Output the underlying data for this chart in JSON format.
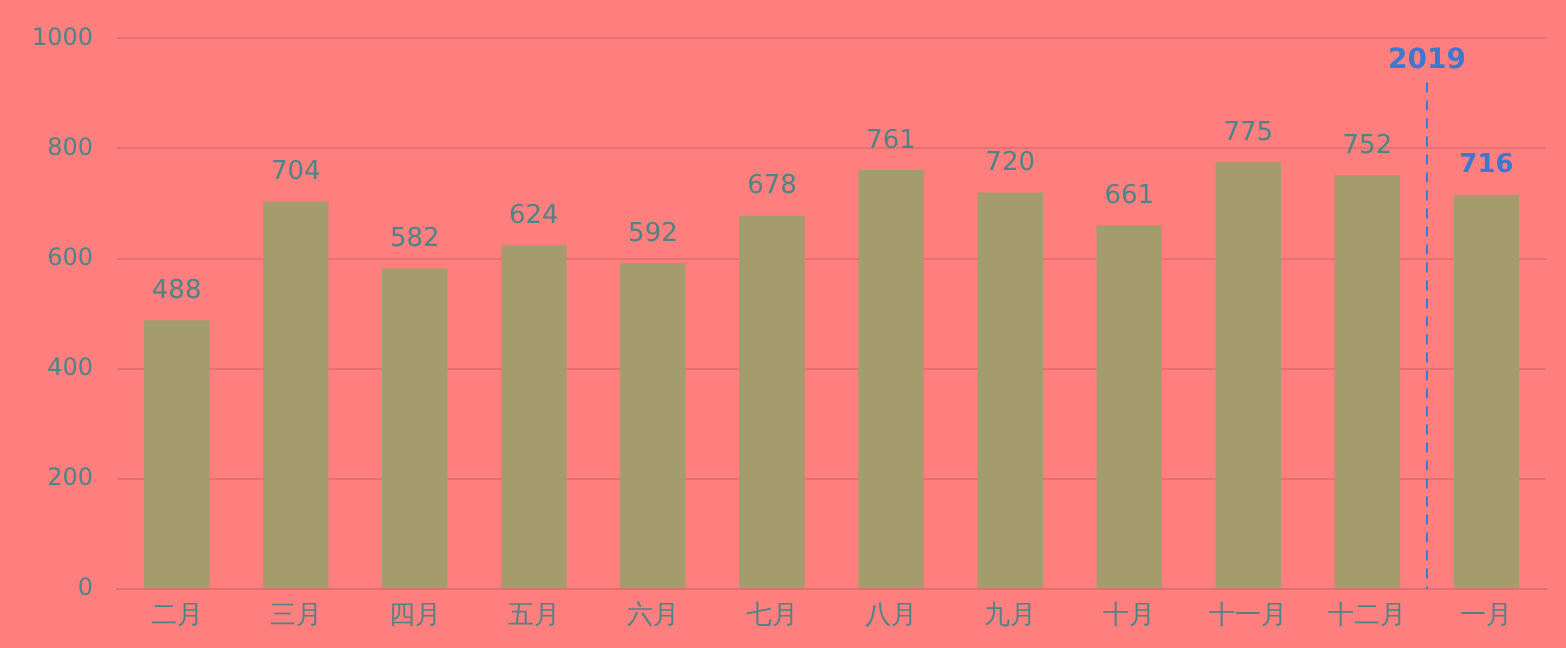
{
  "chart_data": {
    "type": "bar",
    "categories": [
      "二月",
      "三月",
      "四月",
      "五月",
      "六月",
      "七月",
      "八月",
      "九月",
      "十月",
      "十一月",
      "十二月",
      "一月"
    ],
    "values": [
      488,
      704,
      582,
      624,
      592,
      678,
      761,
      720,
      661,
      775,
      752,
      716
    ],
    "color": "#a59c6e",
    "ylim": [
      0,
      1000
    ],
    "yticks": [
      0,
      200,
      400,
      600,
      800,
      1000
    ],
    "grid": "y",
    "legend": false,
    "data_labels": true,
    "ref_lines": [
      {
        "axis": "x",
        "value": "一月",
        "label": "2019",
        "color": "#3d77d0",
        "line_style": "dashed"
      }
    ]
  }
}
